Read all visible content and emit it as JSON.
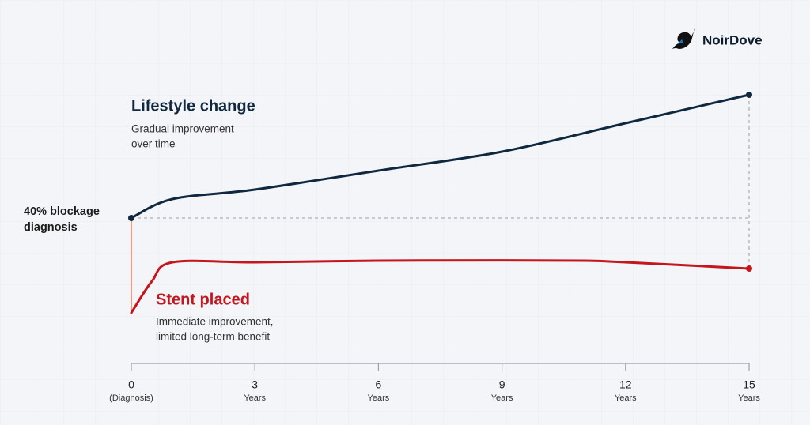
{
  "brand": "NoirDove",
  "chart_data": {
    "type": "line",
    "xlim": [
      0,
      15
    ],
    "xticks": [
      0,
      3,
      6,
      9,
      12,
      15
    ],
    "xtick_sublabels": [
      "(Diagnosis)",
      "Years",
      "Years",
      "Years",
      "Years",
      "Years"
    ],
    "ylim": [
      0,
      100
    ],
    "start_label": [
      "40% blockage",
      "diagnosis"
    ],
    "series": [
      {
        "name": "Lifestyle change",
        "description": [
          "Gradual improvement",
          "over time"
        ],
        "color": "#10283f",
        "x": [
          0,
          1,
          3,
          6,
          9,
          12,
          15
        ],
        "values": [
          46,
          52,
          55,
          61,
          67,
          76,
          85
        ]
      },
      {
        "name": "Stent placed",
        "description": [
          "Immediate improvement,",
          "limited long-term benefit"
        ],
        "color": "#c4161c",
        "x": [
          0,
          0.5,
          1,
          3,
          6,
          9,
          11,
          12,
          15
        ],
        "values": [
          16,
          26,
          32,
          32,
          32.5,
          32.6,
          32.5,
          32,
          30
        ]
      }
    ]
  }
}
